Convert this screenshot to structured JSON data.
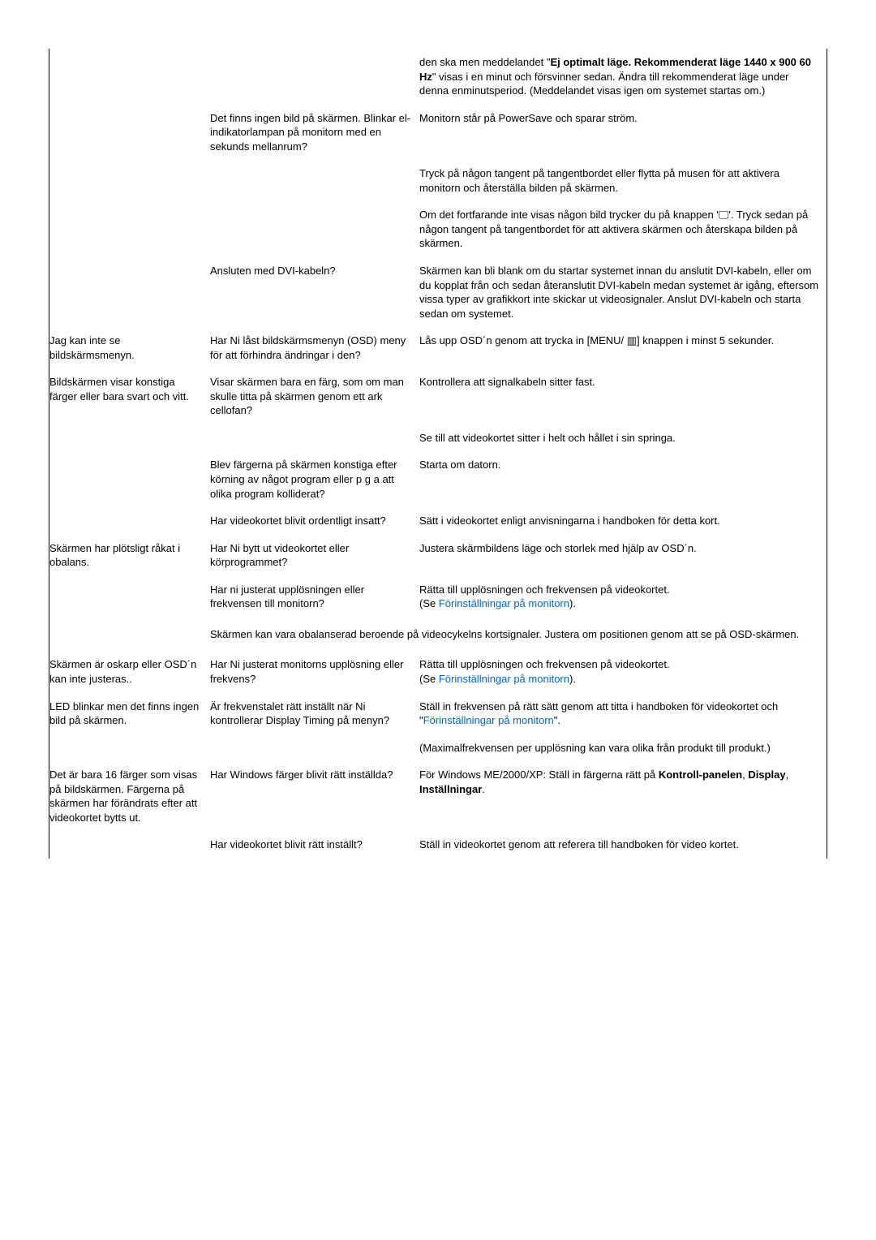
{
  "rows": [
    {
      "c1": "",
      "c2": "",
      "c3": "den ska men meddelandet \"<b>Ej optimalt läge. Rekommenderat läge 1440 x 900 60 Hz</b>\" visas i en minut och försvinner sedan. Ändra till rekommenderat läge under denna enminutsperiod. (Meddelandet visas igen om systemet startas om.)"
    },
    {
      "c1": "",
      "c2": "Det finns ingen bild på skärmen. Blinkar el-indikatorlampan på monitorn med en sekunds mellanrum?",
      "c3": "Monitorn står på PowerSave och sparar ström."
    },
    {
      "c1": "",
      "c2": "",
      "c3": "Tryck på någon tangent på tangentbordet eller flytta på musen för att aktivera monitorn och återställa bilden på skärmen."
    },
    {
      "c1": "",
      "c2": "",
      "c3": "Om det fortfarande inte visas någon bild trycker du på knappen '🖵'. Tryck sedan på någon tangent på tangentbordet för att aktivera skärmen och återskapa bilden på skärmen."
    },
    {
      "c1": "",
      "c2": "Ansluten med DVI-kabeln?",
      "c3": "Skärmen kan bli blank om du startar systemet innan du anslutit DVI-kabeln, eller om du kopplat från och sedan återanslutit DVI-kabeln medan systemet är igång, eftersom vissa typer av grafikkort inte skickar ut videosignaler. Anslut DVI-kabeln och starta sedan om systemet."
    },
    {
      "c1": "Jag kan inte se bildskärmsmenyn.",
      "c2": "Har Ni låst bildskärmsmenyn (OSD) meny för att förhindra ändringar i den?",
      "c3": "Lås upp OSD´n genom att trycka in [MENU/ ▥] knappen i minst 5 sekunder."
    },
    {
      "c1": "Bildskärmen visar konstiga färger eller bara svart och vitt.",
      "c2": "Visar skärmen bara en färg, som om man skulle titta på skärmen genom ett ark cellofan?",
      "c3": "Kontrollera att signalkabeln sitter fast."
    },
    {
      "c1": "",
      "c2": "",
      "c3": "Se till att videokortet sitter i helt och hållet i sin springa."
    },
    {
      "c1": "",
      "c2": "Blev färgerna på skärmen konstiga efter körning av något program eller p g a att olika program kolliderat?",
      "c3": "Starta om datorn."
    },
    {
      "c1": "",
      "c2": "Har videokortet blivit ordentligt insatt?",
      "c3": "Sätt i videokortet enligt anvisningarna i handboken för detta kort."
    },
    {
      "c1": "Skärmen har plötsligt råkat i obalans.",
      "c2": "Har Ni bytt ut videokortet eller körprogrammet?",
      "c3": "Justera skärmbildens läge och storlek med hjälp av OSD´n."
    },
    {
      "c1": "",
      "c2": "Har ni justerat upplösningen eller frekvensen till monitorn?",
      "c3": "Rätta till upplösningen och frekvensen på videokortet.<br>(Se <a class=\"link\" data-name=\"preset-link\" data-interactable=\"true\">Förinställningar på monitorn</a>)."
    },
    {
      "spanned": true,
      "text": "Skärmen kan vara obalanserad beroende på videocykelns kortsignaler. Justera om positionen genom att se på OSD-skärmen."
    },
    {
      "c1": "Skärmen är oskarp eller OSD´n kan inte justeras..",
      "c2": "Har Ni justerat monitorns upplösning eller frekvens?",
      "c3": "Rätta till upplösningen och frekvensen på videokortet.<br>(Se <a class=\"link\" data-name=\"preset-link\" data-interactable=\"true\">Förinställningar på monitorn</a>)."
    },
    {
      "c1": "LED blinkar men det finns ingen bild på skärmen.",
      "c2": "Är frekvenstalet rätt inställt när Ni kontrollerar Display Timing på menyn?",
      "c3": "Ställ in frekvensen på rätt sätt genom att titta i handboken för videokortet och \"<a class=\"link\" data-name=\"preset-link\" data-interactable=\"true\">Förinställningar på monitorn</a>\"."
    },
    {
      "c1": "",
      "c2": "",
      "c3": "(Maximalfrekvensen per upplösning kan vara olika från produkt till produkt.)"
    },
    {
      "c1": "Det är bara 16 färger som visas på bildskärmen. Färgerna på skärmen har förändrats efter att videokortet bytts ut.",
      "c2": "Har Windows färger blivit rätt inställda?",
      "c3": "För Windows ME/2000/XP: Ställ in färgerna rätt på <b>Kontroll-panelen</b>, <b>Display</b>, <b>Inställningar</b>."
    },
    {
      "c1": "",
      "c2": "Har videokortet blivit rätt inställt?",
      "c3": "Ställ in videokortet genom att referera till handboken för video kortet."
    }
  ]
}
